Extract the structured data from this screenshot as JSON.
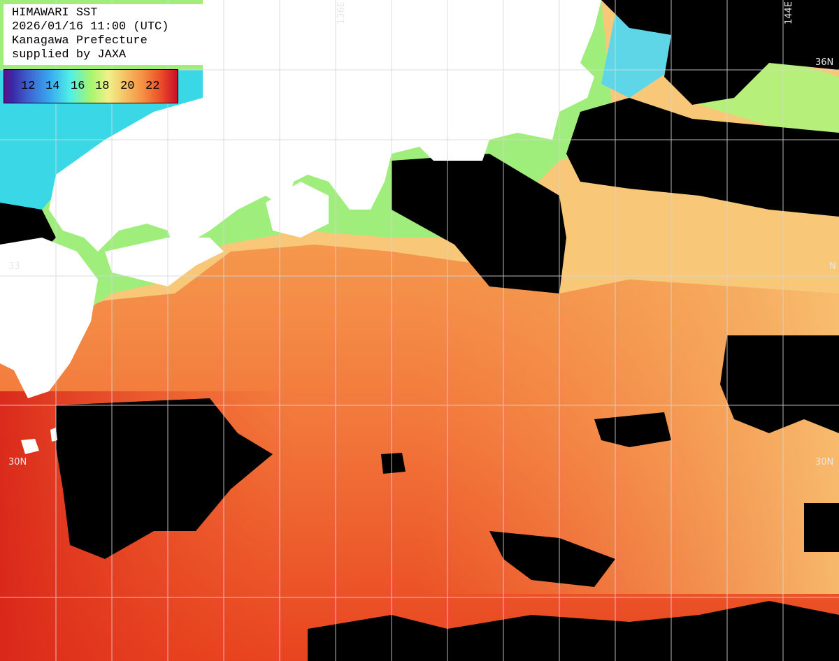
{
  "info": {
    "line1": "HIMAWARI SST",
    "line2": "2026/01/16 11:00 (UTC)",
    "line3": "Kanagawa Prefecture",
    "line4": "supplied by JAXA"
  },
  "legend": {
    "labels": [
      "12",
      "14",
      "16",
      "18",
      "20",
      "22"
    ],
    "colors": [
      "#5a128c",
      "#3d63cf",
      "#38a7ef",
      "#4ff0e8",
      "#a8f56e",
      "#f0f18a",
      "#f6c063",
      "#f59044",
      "#ec5028",
      "#c90d2c"
    ]
  },
  "grid_labels": {
    "lon_136": "136E",
    "lon_144": "144E",
    "lat_36_right": "36N",
    "lat_33_left": "33",
    "lat_33_right": "N",
    "lat_30_left": "30N",
    "lat_30_right": "30N"
  },
  "map_colors": {
    "land": "#ffffff",
    "no_data": "#000000",
    "warm": "#f26a2a",
    "warmer": "#e8381c",
    "mild": "#f8b865",
    "cool": "#b6f07a",
    "cold": "#3ad8e6",
    "grid": "#d0d0d0"
  }
}
